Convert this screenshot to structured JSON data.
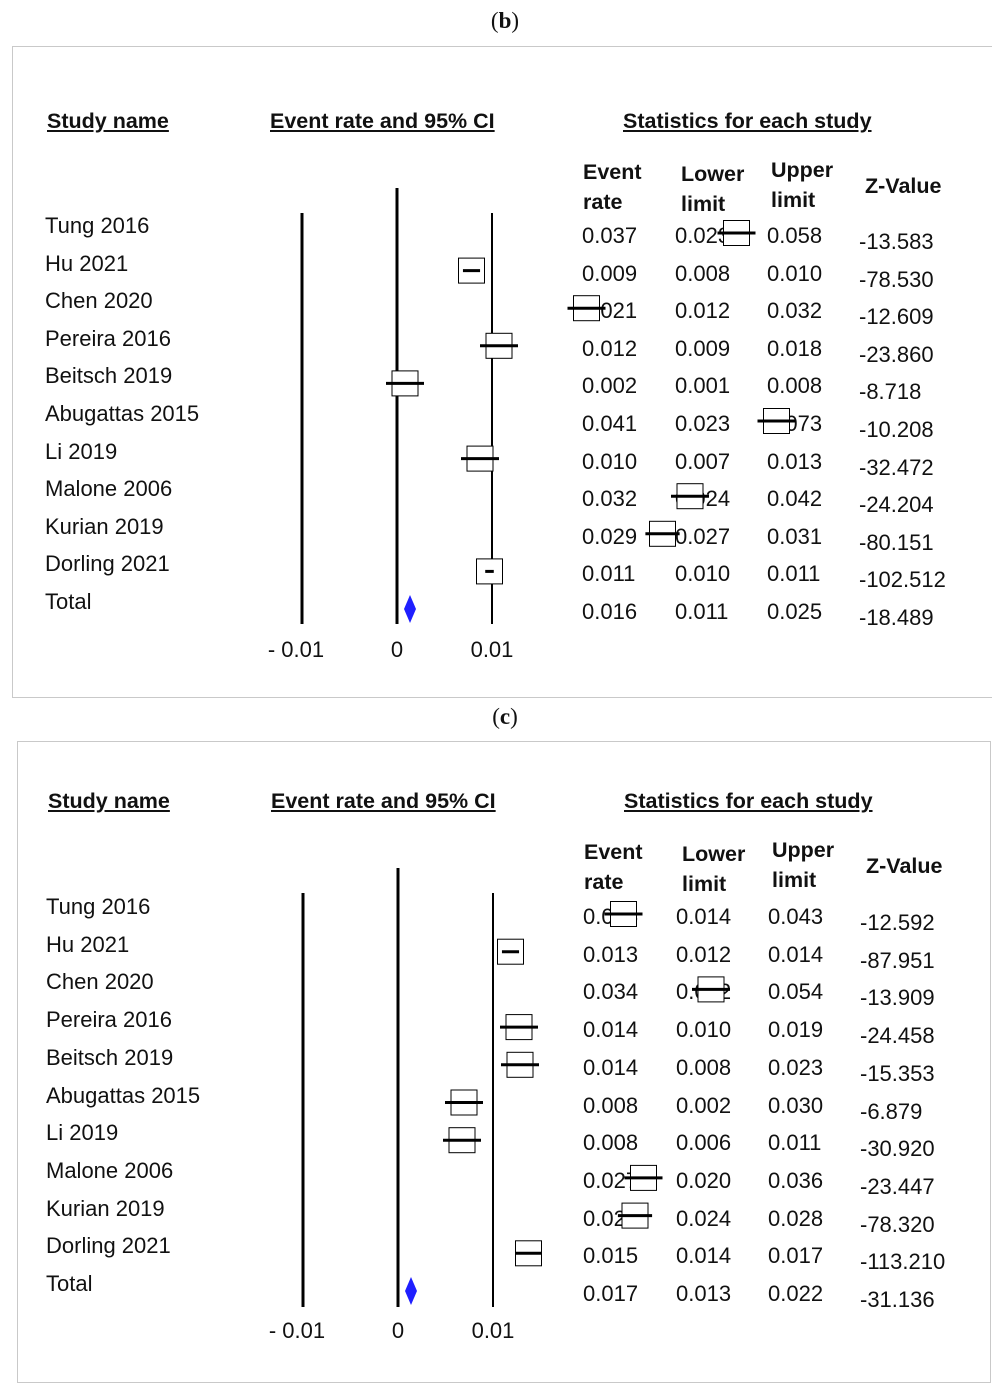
{
  "panels": [
    {
      "label": "b",
      "headers": {
        "study_name": "Study name",
        "event_rate_ci": "Event rate and 95% CI",
        "statistics": "Statistics for each study"
      },
      "columns": {
        "event_rate": [
          "Event",
          "rate"
        ],
        "lower_limit": [
          "Lower",
          "limit"
        ],
        "upper_limit": [
          "Upper",
          "limit"
        ],
        "z_value": "Z-Value"
      },
      "ticks": [
        "- 0.01",
        "0",
        "0.01"
      ],
      "rows": [
        {
          "study": "Tung 2016",
          "event_rate": "0.037",
          "lower": "0.023",
          "upper": "0.058",
          "z": "-13.583"
        },
        {
          "study": "Hu 2021",
          "event_rate": "0.009",
          "lower": "0.008",
          "upper": "0.010",
          "z": "-78.530"
        },
        {
          "study": "Chen 2020",
          "event_rate": "0.021",
          "lower": "0.012",
          "upper": "0.032",
          "z": "-12.609"
        },
        {
          "study": "Pereira 2016",
          "event_rate": "0.012",
          "lower": "0.009",
          "upper": "0.018",
          "z": "-23.860"
        },
        {
          "study": "Beitsch 2019",
          "event_rate": "0.002",
          "lower": "0.001",
          "upper": "0.008",
          "z": "-8.718"
        },
        {
          "study": "Abugattas 2015",
          "event_rate": "0.041",
          "lower": "0.023",
          "upper": "0.073",
          "z": "-10.208"
        },
        {
          "study": "Li 2019",
          "event_rate": "0.010",
          "lower": "0.007",
          "upper": "0.013",
          "z": "-32.472"
        },
        {
          "study": "Malone 2006",
          "event_rate": "0.032",
          "lower": "0.024",
          "upper": "0.042",
          "z": "-24.204"
        },
        {
          "study": "Kurian 2019",
          "event_rate": "0.029",
          "lower": "0.027",
          "upper": "0.031",
          "z": "-80.151"
        },
        {
          "study": "Dorling 2021",
          "event_rate": "0.011",
          "lower": "0.010",
          "upper": "0.011",
          "z": "-102.512"
        }
      ],
      "total": {
        "study": "Total",
        "event_rate": "0.016",
        "lower": "0.011",
        "upper": "0.025",
        "z": "-18.489"
      }
    },
    {
      "label": "c",
      "headers": {
        "study_name": "Study name",
        "event_rate_ci": "Event rate and 95% CI",
        "statistics": "Statistics for each study"
      },
      "columns": {
        "event_rate": [
          "Event",
          "rate"
        ],
        "lower_limit": [
          "Lower",
          "limit"
        ],
        "upper_limit": [
          "Upper",
          "limit"
        ],
        "z_value": "Z-Value"
      },
      "ticks": [
        "- 0.01",
        "0",
        "0.01"
      ],
      "rows": [
        {
          "study": "Tung 2016",
          "event_rate": "0.025",
          "lower": "0.014",
          "upper": "0.043",
          "z": "-12.592"
        },
        {
          "study": "Hu 2021",
          "event_rate": "0.013",
          "lower": "0.012",
          "upper": "0.014",
          "z": "-87.951"
        },
        {
          "study": "Chen 2020",
          "event_rate": "0.034",
          "lower": "0.022",
          "upper": "0.054",
          "z": "-13.909"
        },
        {
          "study": "Pereira 2016",
          "event_rate": "0.014",
          "lower": "0.010",
          "upper": "0.019",
          "z": "-24.458"
        },
        {
          "study": "Beitsch 2019",
          "event_rate": "0.014",
          "lower": "0.008",
          "upper": "0.023",
          "z": "-15.353"
        },
        {
          "study": "Abugattas 2015",
          "event_rate": "0.008",
          "lower": "0.002",
          "upper": "0.030",
          "z": "-6.879"
        },
        {
          "study": "Li 2019",
          "event_rate": "0.008",
          "lower": "0.006",
          "upper": "0.011",
          "z": "-30.920"
        },
        {
          "study": "Malone 2006",
          "event_rate": "0.027",
          "lower": "0.020",
          "upper": "0.036",
          "z": "-23.447"
        },
        {
          "study": "Kurian 2019",
          "event_rate": "0.026",
          "lower": "0.024",
          "upper": "0.028",
          "z": "-78.320"
        },
        {
          "study": "Dorling 2021",
          "event_rate": "0.015",
          "lower": "0.014",
          "upper": "0.017",
          "z": "-113.210"
        }
      ],
      "total": {
        "study": "Total",
        "event_rate": "0.017",
        "lower": "0.013",
        "upper": "0.022",
        "z": "-31.136"
      }
    }
  ],
  "chart_data": [
    {
      "type": "scatter",
      "subtype": "forest-plot",
      "title": "",
      "xlabel": "Event rate and 95% CI",
      "xlim": [
        -0.01,
        0.01
      ],
      "x_ticks": [
        -0.01,
        0,
        0.01
      ],
      "categories": [
        "Tung 2016",
        "Hu 2021",
        "Chen 2020",
        "Pereira 2016",
        "Beitsch 2019",
        "Abugattas 2015",
        "Li 2019",
        "Malone 2006",
        "Kurian 2019",
        "Dorling 2021",
        "Total"
      ],
      "event_rate": [
        0.037,
        0.009,
        0.021,
        0.012,
        0.002,
        0.041,
        0.01,
        0.032,
        0.029,
        0.011,
        0.016
      ],
      "lower": [
        0.023,
        0.008,
        0.012,
        0.009,
        0.001,
        0.023,
        0.007,
        0.024,
        0.027,
        0.01,
        0.011
      ],
      "upper": [
        0.058,
        0.01,
        0.032,
        0.018,
        0.008,
        0.073,
        0.013,
        0.042,
        0.031,
        0.011,
        0.025
      ],
      "summary_color": "#1f1fff"
    },
    {
      "type": "scatter",
      "subtype": "forest-plot",
      "title": "",
      "xlabel": "Event rate and 95% CI",
      "xlim": [
        -0.01,
        0.01
      ],
      "x_ticks": [
        -0.01,
        0,
        0.01
      ],
      "categories": [
        "Tung 2016",
        "Hu 2021",
        "Chen 2020",
        "Pereira 2016",
        "Beitsch 2019",
        "Abugattas 2015",
        "Li 2019",
        "Malone 2006",
        "Kurian 2019",
        "Dorling 2021",
        "Total"
      ],
      "event_rate": [
        0.025,
        0.013,
        0.034,
        0.014,
        0.014,
        0.008,
        0.008,
        0.027,
        0.026,
        0.015,
        0.017
      ],
      "lower": [
        0.014,
        0.012,
        0.022,
        0.01,
        0.008,
        0.002,
        0.006,
        0.02,
        0.024,
        0.014,
        0.013
      ],
      "upper": [
        0.043,
        0.014,
        0.054,
        0.019,
        0.023,
        0.03,
        0.011,
        0.036,
        0.028,
        0.017,
        0.022
      ],
      "summary_color": "#1f1fff"
    }
  ]
}
